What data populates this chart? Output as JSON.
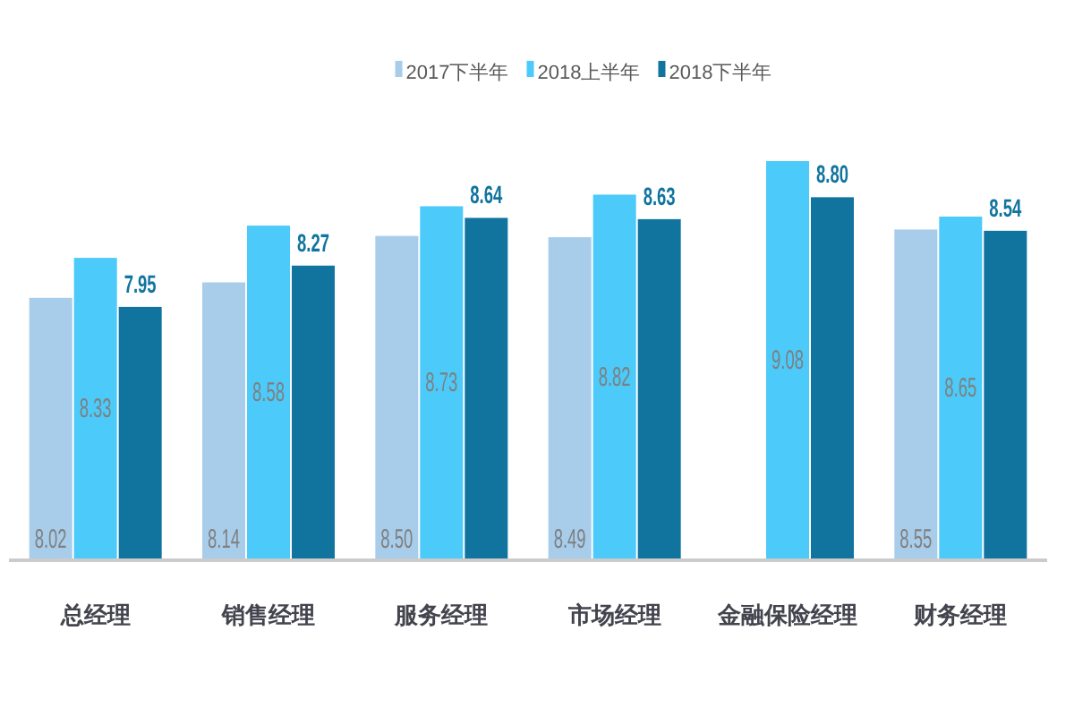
{
  "chart_data": {
    "type": "bar",
    "categories": [
      "总经理",
      "销售经理",
      "服务经理",
      "市场经理",
      "金融保险经理",
      "财务经理"
    ],
    "series": [
      {
        "name": "2017下半年",
        "color": "#a8cdeb",
        "values": [
          8.02,
          8.14,
          8.5,
          8.49,
          null,
          8.55
        ],
        "value_labels": [
          "8.02",
          "8.14",
          "8.50",
          "8.49",
          null,
          "8.55"
        ]
      },
      {
        "name": "2018上半年",
        "color": "#4ccaf9",
        "values": [
          8.33,
          8.58,
          8.73,
          8.82,
          9.08,
          8.65
        ],
        "value_labels": [
          "8.33",
          "8.58",
          "8.73",
          "8.82",
          "9.08",
          "8.65"
        ]
      },
      {
        "name": "2018下半年",
        "color": "#11749f",
        "values": [
          7.95,
          8.27,
          8.64,
          8.63,
          8.8,
          8.54
        ],
        "value_labels": [
          "7.95",
          "8.27",
          "8.64",
          "8.63",
          "8.80",
          "8.54"
        ]
      }
    ],
    "ylim": [
      6,
      9.08
    ],
    "tick_labels": "x",
    "legend": "top"
  }
}
